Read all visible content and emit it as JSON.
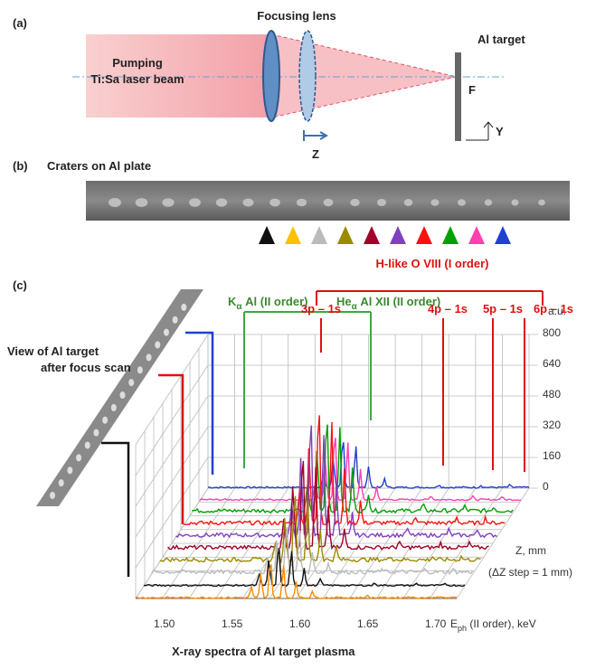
{
  "panel_a": {
    "label": "(a)",
    "lens_title": "Focusing lens",
    "beam_line1": "Pumping",
    "beam_line2": "Ti:Sa laser beam",
    "target_title": "Al target",
    "focus": "F",
    "y_axis": "Y",
    "z_axis": "Z"
  },
  "panel_b": {
    "label": "(b)",
    "title": "Craters on Al plate"
  },
  "panel_c": {
    "label": "(c)",
    "group_title": "H-like O VIII (I order)",
    "lines": [
      "3p – 1s",
      "4p – 1s",
      "5p – 1s",
      "6p – 1s"
    ],
    "k_alpha": {
      "base": "K",
      "sub": "α",
      "rest": " Al (II order)"
    },
    "he_alpha": {
      "base": "He",
      "sub": "α",
      "rest": " Al XII (II order)"
    },
    "intensity_unit": "a.u.",
    "intensity_ticks": [
      "800",
      "640",
      "480",
      "320",
      "160",
      "0"
    ],
    "energy_ticks": [
      "1.50",
      "1.55",
      "1.60",
      "1.65",
      "1.70"
    ],
    "energy_label": {
      "base": "E",
      "sub": "ph",
      "rest": " (II order), keV"
    },
    "z_label": "Z, mm",
    "z_step": "(ΔZ step = 1 mm)",
    "side_line1": "View of Al target",
    "side_line2": "after focus scan",
    "caption": "X-ray spectra of Al target plasma"
  }
}
